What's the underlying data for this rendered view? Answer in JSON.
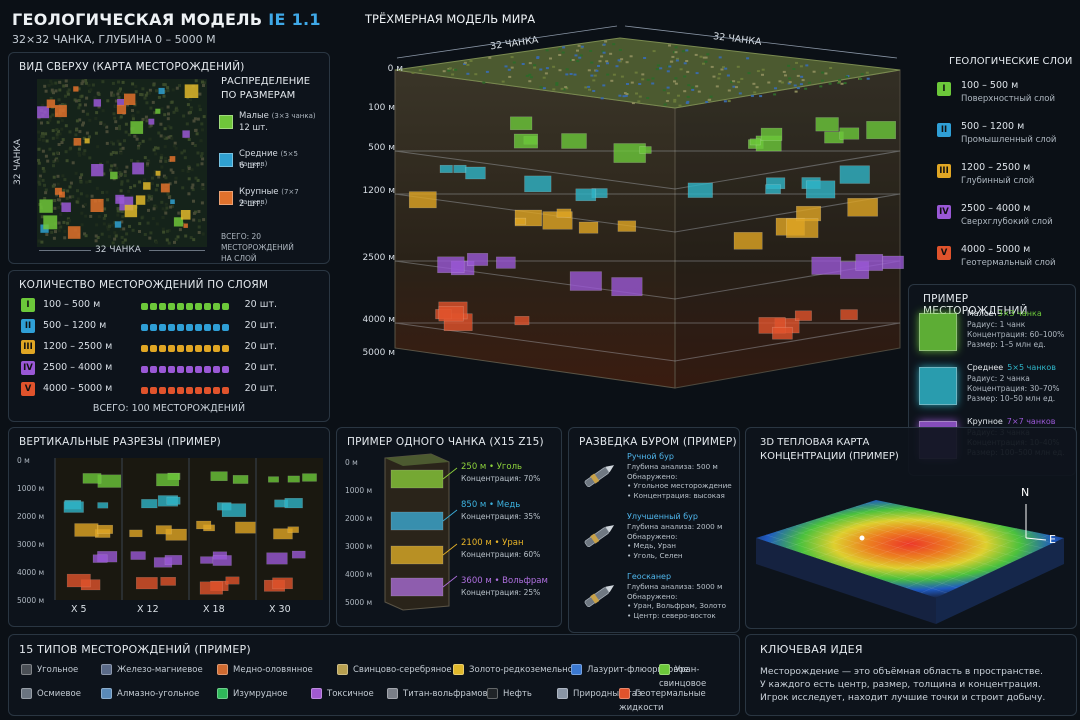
{
  "header": {
    "title": "ГЕОЛОГИЧЕСКАЯ МОДЕЛЬ",
    "version": "IE 1.1",
    "subtitle": "32×32 ЧАНКА, ГЛУБИНА 0 – 5000 М"
  },
  "top_view": {
    "title": "ВИД СВЕРХУ (КАРТА МЕСТОРОЖДЕНИЙ)",
    "axis_x": "32 ЧАНКА",
    "axis_y": "32 ЧАНКА",
    "dist_title_1": "РАСПРЕДЕЛЕНИЕ",
    "dist_title_2": "ПО РАЗМЕРАМ",
    "sizes": [
      {
        "label": "Малые",
        "detail": "(3×3 чанка)",
        "count": "12 шт.",
        "color": "#6fc63a"
      },
      {
        "label": "Средние",
        "detail": "(5×5 чанков)",
        "count": "6 шт.",
        "color": "#2fa0d0"
      },
      {
        "label": "Крупные",
        "detail": "(7×7 чанков)",
        "count": "2 шт.",
        "color": "#e0712c"
      }
    ],
    "total_1": "ВСЕГО: 20 МЕСТОРОЖДЕНИЙ",
    "total_2": "НА СЛОЙ"
  },
  "world_model": {
    "title": "ТРЁХМЕРНАЯ МОДЕЛЬ МИРА",
    "axis_left": "32 ЧАНКА",
    "axis_right": "32 ЧАНКА",
    "depths": [
      "0 м",
      "100 м",
      "500 м",
      "1200 м",
      "2500 м",
      "4000 м",
      "5000 м"
    ]
  },
  "layers": {
    "title": "ГЕОЛОГИЧЕСКИЕ СЛОИ",
    "items": [
      {
        "badge": "I",
        "range": "100 – 500 м",
        "name": "Поверхностный слой",
        "color": "#6cc83a"
      },
      {
        "badge": "II",
        "range": "500 – 1200 м",
        "name": "Промышленный слой",
        "color": "#2f9fd6"
      },
      {
        "badge": "III",
        "range": "1200 – 2500 м",
        "name": "Глубинный слой",
        "color": "#e0a624"
      },
      {
        "badge": "IV",
        "range": "2500 – 4000 м",
        "name": "Сверхглубокий слой",
        "color": "#9a58d6"
      },
      {
        "badge": "V",
        "range": "4000 – 5000 м",
        "name": "Геотермальный слой",
        "color": "#e0532c"
      }
    ]
  },
  "counts": {
    "title": "КОЛИЧЕСТВО МЕСТОРОЖДЕНИЙ ПО СЛОЯМ",
    "rows": [
      {
        "badge": "I",
        "range": "100 – 500 м",
        "count": "20 шт.",
        "color": "#6cc83a"
      },
      {
        "badge": "II",
        "range": "500 – 1200 м",
        "count": "20 шт.",
        "color": "#2f9fd6"
      },
      {
        "badge": "III",
        "range": "1200 – 2500 м",
        "count": "20 шт.",
        "color": "#e0a624"
      },
      {
        "badge": "IV",
        "range": "2500 – 4000 м",
        "count": "20 шт.",
        "color": "#9a58d6"
      },
      {
        "badge": "V",
        "range": "4000 – 5000 м",
        "count": "20 шт.",
        "color": "#e0532c"
      }
    ],
    "total": "ВСЕГО: 100 МЕСТОРОЖДЕНИЙ"
  },
  "examples": {
    "title": "ПРИМЕР МЕСТОРОЖДЕНИЙ",
    "items": [
      {
        "name": "Малое",
        "size": "3×3 чанка",
        "radius": "Радиус: 1 чанк",
        "conc": "Концентрация: 60–100%",
        "amount": "Размер: 1–5 млн ед.",
        "color": "#6cc83a"
      },
      {
        "name": "Среднее",
        "size": "5×5 чанков",
        "radius": "Радиус: 2 чанка",
        "conc": "Концентрация: 30–70%",
        "amount": "Размер: 10–50 млн ед.",
        "color": "#2fb5c8"
      },
      {
        "name": "Крупное",
        "size": "7×7 чанков",
        "radius": "Радиус: 3 чанка",
        "conc": "Концентрация: 10–40%",
        "amount": "Размер: 100–500 млн ед.",
        "color": "#9a58d6"
      }
    ]
  },
  "sections": {
    "title": "ВЕРТИКАЛЬНЫЕ РАЗРЕЗЫ (ПРИМЕР)",
    "depths": [
      "0 м",
      "1000 м",
      "2000 м",
      "3000 м",
      "4000 м",
      "5000 м"
    ],
    "columns": [
      "X 5",
      "X 12",
      "X 18",
      "X 30"
    ]
  },
  "chunk": {
    "title": "ПРИМЕР ОДНОГО ЧАНКА (X15 Z15)",
    "depths": [
      "0 м",
      "1000 м",
      "2000 м",
      "3000 м",
      "4000 м",
      "5000 м"
    ],
    "deposits": [
      {
        "name": "250 м • Уголь",
        "conc": "Концентрация: 70%",
        "color": "#8fd43c"
      },
      {
        "name": "850 м • Медь",
        "conc": "Концентрация: 35%",
        "color": "#3db3e0"
      },
      {
        "name": "2100 м • Уран",
        "conc": "Концентрация: 60%",
        "color": "#e8b428"
      },
      {
        "name": "3600 м • Вольфрам",
        "conc": "Концентрация: 25%",
        "color": "#b070e0"
      }
    ]
  },
  "drilling": {
    "title": "РАЗВЕДКА БУРОМ (ПРИМЕР)",
    "tools": [
      {
        "name": "Ручной бур",
        "lines": [
          "Глубина анализа: 500 м",
          "Обнаружено:",
          "• Угольное месторождение",
          "• Концентрация: высокая"
        ]
      },
      {
        "name": "Улучшенный бур",
        "lines": [
          "Глубина анализа: 2000 м",
          "Обнаружено:",
          "• Медь, Уран",
          "• Уголь, Селен"
        ]
      },
      {
        "name": "Геосканер",
        "lines": [
          "Глубина анализа: 5000 м",
          "Обнаружено:",
          "• Уран, Вольфрам, Золото",
          "• Центр: северо-восток"
        ]
      }
    ]
  },
  "heatmap": {
    "title_1": "3D ТЕПЛОВАЯ КАРТА",
    "title_2": "КОНЦЕНТРАЦИИ (ПРИМЕР)",
    "north": "N",
    "east": "E"
  },
  "types": {
    "title": "15 ТИПОВ МЕСТОРОЖДЕНИЙ (ПРИМЕР)",
    "items": [
      {
        "label": "Угольное",
        "color": "#4a4f55"
      },
      {
        "label": "Железо-магниевое",
        "color": "#5a6a88"
      },
      {
        "label": "Медно-оловянное",
        "color": "#d06a30"
      },
      {
        "label": "Свинцово-серебряное",
        "color": "#b8a050"
      },
      {
        "label": "Золото-редкоземельное",
        "color": "#e0b82c"
      },
      {
        "label": "Лазурит-флюоритовое",
        "color": "#3a78d0"
      },
      {
        "label": "Уран-свинцовое",
        "color": "#6cc83a"
      },
      {
        "label": "Осмиевое",
        "color": "#6a7480"
      },
      {
        "label": "Алмазно-угольное",
        "color": "#5a8ab8"
      },
      {
        "label": "Изумрудное",
        "color": "#2fb85a"
      },
      {
        "label": "Токсичное",
        "color": "#a05ad0"
      },
      {
        "label": "Титан-вольфрамовое",
        "color": "#7a7f88"
      },
      {
        "label": "Нефть",
        "color": "#202428"
      },
      {
        "label": "Природный газ",
        "color": "#8a96a6"
      },
      {
        "label": "Геотермальные жидкости",
        "color": "#e0532c"
      }
    ]
  },
  "key_idea": {
    "title": "КЛЮЧЕВАЯ ИДЕЯ",
    "lines": [
      "Месторождение — это объёмная область в пространстве.",
      "У каждого есть центр, размер, толщина и концентрация.",
      "Игрок исследует, находит лучшие точки и строит добычу."
    ]
  }
}
